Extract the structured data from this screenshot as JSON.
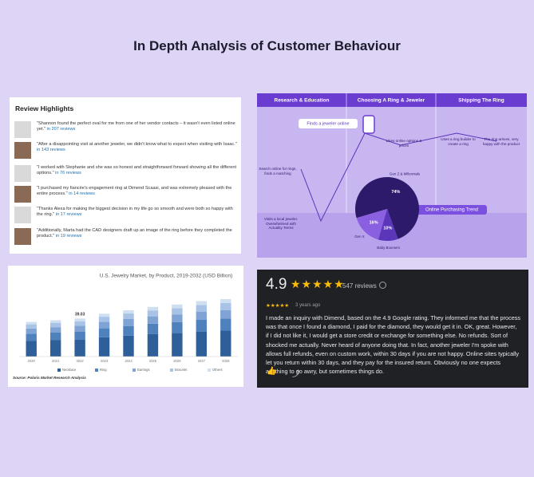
{
  "header": {
    "title": "In Depth Analysis of Customer Behaviour"
  },
  "review_highlights": {
    "title": "Review Highlights",
    "items": [
      {
        "text": "\"Shannon found the perfect oval for me from one of her vendor contacts – it wasn't even listed online yet.\"",
        "reviews": "in 207 reviews"
      },
      {
        "text": "\"After a disappointing visit at another jeweler, we didn't know what to expect when visiting with Isaac.\"",
        "reviews": "in 143 reviews"
      },
      {
        "text": "\"I worked with Stephanie and she was so honest and straightforward forward showing all the different options.\"",
        "reviews": "in 76 reviews"
      },
      {
        "text": "\"I purchased my fiancée's engagement ring at Dimend Scaasi, and was extremely pleased with the entire process.\"",
        "reviews": "in 14 reviews"
      },
      {
        "text": "\"Thanks Alexa for making the biggest decision in my life go so smooth and were both so happy with the ring.\"",
        "reviews": "in 17 reviews"
      },
      {
        "text": "\"Additionally, Marta had the CAD designers draft up an image of the ring before they completed the product.\"",
        "reviews": "in 19 reviews"
      }
    ]
  },
  "journey": {
    "stages": [
      "Research & Education",
      "Choosing A Ring & Jeweler",
      "Shipping The Ring"
    ],
    "steps": [
      "Finds a jeweler online",
      "Search online for rings, finds a matching",
      "Visits a local jeweler. Overwhelmed with Actuality Terms",
      "Likes online options & prices",
      "Uses a ring builder to create a ring",
      "The ring arrives, very happy with the product"
    ]
  },
  "google_review": {
    "rating": "4.9",
    "count": "547 reviews",
    "age": "3 years ago",
    "body": "I made an inquiry with Dimend, based on the 4.9 Google rating. They informed me that the process was that once I found a diamond, I paid for the diamond, they would get it in. OK, great. However, if I did not like it, I would get a store credit or exchange for something else. No refunds. Sort of shocked me actually. Never heard of anyone doing that. In fact, another jeweler I'm spoke with allows full refunds, even on custom work, within 30 days if you are not happy. Online sites typically let you return within 30 days, and they pay for the insured return. Obviously no one expects anything to go awry, but sometimes things do."
  },
  "chart_data": [
    {
      "type": "stacked-bar",
      "title": "U.S. Jewelry Market, by Product, 2019-2032 (USD Billion)",
      "source": "Source: Polaris  Market Research Analysis",
      "categories": [
        "2020",
        "2021",
        "2022",
        "2023",
        "2024",
        "2025",
        "2026",
        "2027",
        "2028"
      ],
      "series": [
        {
          "name": "Necklace",
          "color": "#2f5f98",
          "values": [
            16.0,
            16.8,
            17.5,
            19.8,
            21.4,
            23.0,
            24.1,
            25.7,
            26.6
          ]
        },
        {
          "name": "Ring",
          "color": "#4f81bd",
          "values": [
            7.5,
            7.8,
            8.2,
            9.2,
            10.0,
            10.7,
            11.2,
            12.0,
            12.4
          ]
        },
        {
          "name": "Earrings",
          "color": "#7ea3d4",
          "values": [
            5.3,
            5.6,
            6.0,
            6.6,
            7.1,
            7.6,
            8.0,
            8.5,
            8.8
          ]
        },
        {
          "name": "Bracelet",
          "color": "#a8c3e6",
          "values": [
            4.3,
            4.5,
            4.5,
            5.3,
            5.7,
            6.1,
            6.4,
            6.8,
            7.1
          ]
        },
        {
          "name": "Others",
          "color": "#cfdff2",
          "values": [
            2.5,
            2.6,
            2.83,
            3.1,
            3.3,
            3.6,
            3.8,
            4.0,
            4.1
          ]
        }
      ],
      "annotation": {
        "x": "2022",
        "value": 39.03
      }
    },
    {
      "type": "pie",
      "title": "Online Purchasing Trend",
      "categories": [
        "Gen Z & Millennials",
        "Gen X",
        "Baby Boomers"
      ],
      "values": [
        74,
        16,
        10
      ],
      "value_labels": [
        "74%",
        "16%",
        "10%"
      ],
      "colors": [
        "#2e1a6b",
        "#8a5fe0",
        "#5b36b8"
      ]
    }
  ]
}
